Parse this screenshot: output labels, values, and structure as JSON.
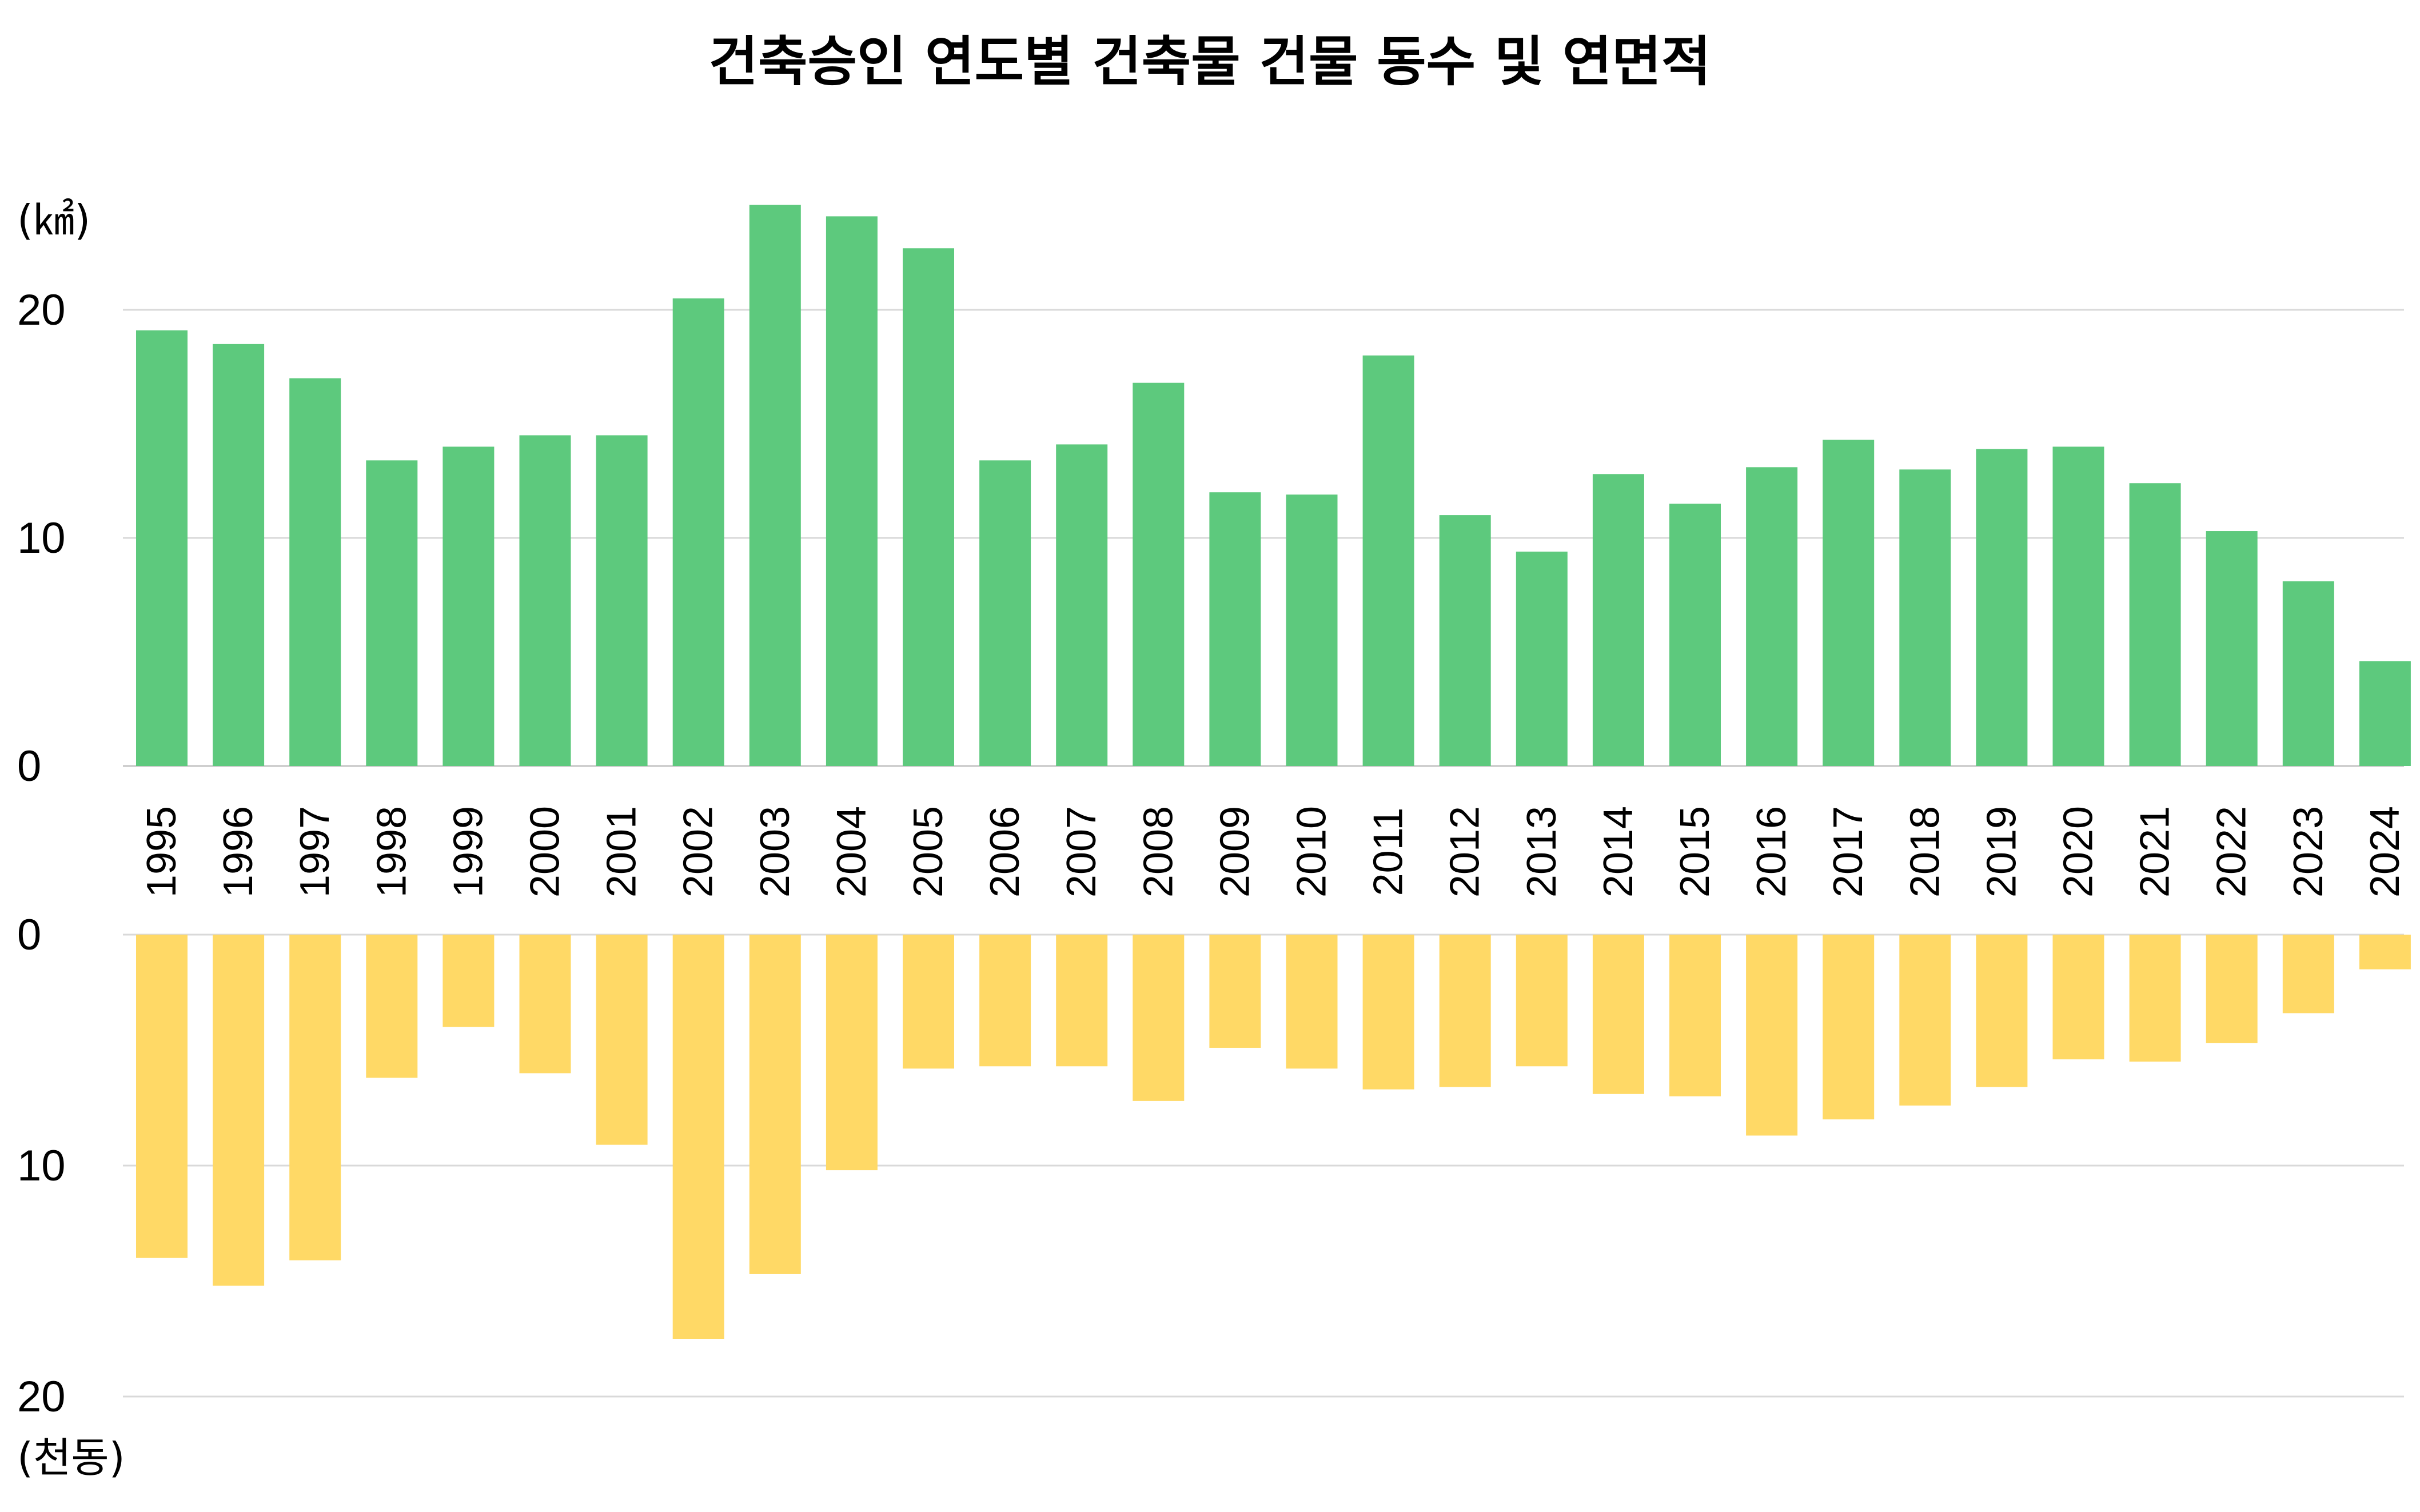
{
  "chart_data": {
    "type": "bar",
    "title": "건축승인 연도별 건축물 건물 동수 및 연면적",
    "categories": [
      "1995",
      "1996",
      "1997",
      "1998",
      "1999",
      "2000",
      "2001",
      "2002",
      "2003",
      "2004",
      "2005",
      "2006",
      "2007",
      "2008",
      "2009",
      "2010",
      "2011",
      "2012",
      "2013",
      "2014",
      "2015",
      "2016",
      "2017",
      "2018",
      "2019",
      "2020",
      "2021",
      "2022",
      "2023",
      "2024"
    ],
    "series": [
      {
        "name": "",
        "unit_label": "(㎢)",
        "color": "#5dc97d",
        "ylim": [
          0,
          25
        ],
        "ticks": [
          "0",
          "10",
          "20"
        ],
        "values": [
          19.1,
          18.5,
          17.0,
          13.4,
          14.0,
          14.5,
          14.5,
          20.5,
          24.6,
          24.1,
          22.7,
          13.4,
          14.1,
          16.8,
          12.0,
          11.9,
          18.0,
          11.0,
          9.4,
          12.8,
          11.5,
          13.1,
          14.3,
          13.0,
          13.9,
          14.0,
          12.4,
          10.3,
          8.1,
          4.6
        ]
      },
      {
        "name": "",
        "unit_label": "(천동)",
        "color": "#ffd966",
        "ylim": [
          0,
          20
        ],
        "ticks": [
          "0",
          "10",
          "20"
        ],
        "values": [
          14.0,
          15.2,
          14.1,
          6.2,
          4.0,
          6.0,
          9.1,
          17.5,
          14.7,
          10.2,
          5.8,
          5.7,
          5.7,
          7.2,
          4.9,
          5.8,
          6.7,
          6.6,
          5.7,
          6.9,
          7.0,
          8.7,
          8.0,
          7.4,
          6.6,
          5.4,
          5.5,
          4.7,
          3.4,
          1.5
        ]
      }
    ]
  }
}
